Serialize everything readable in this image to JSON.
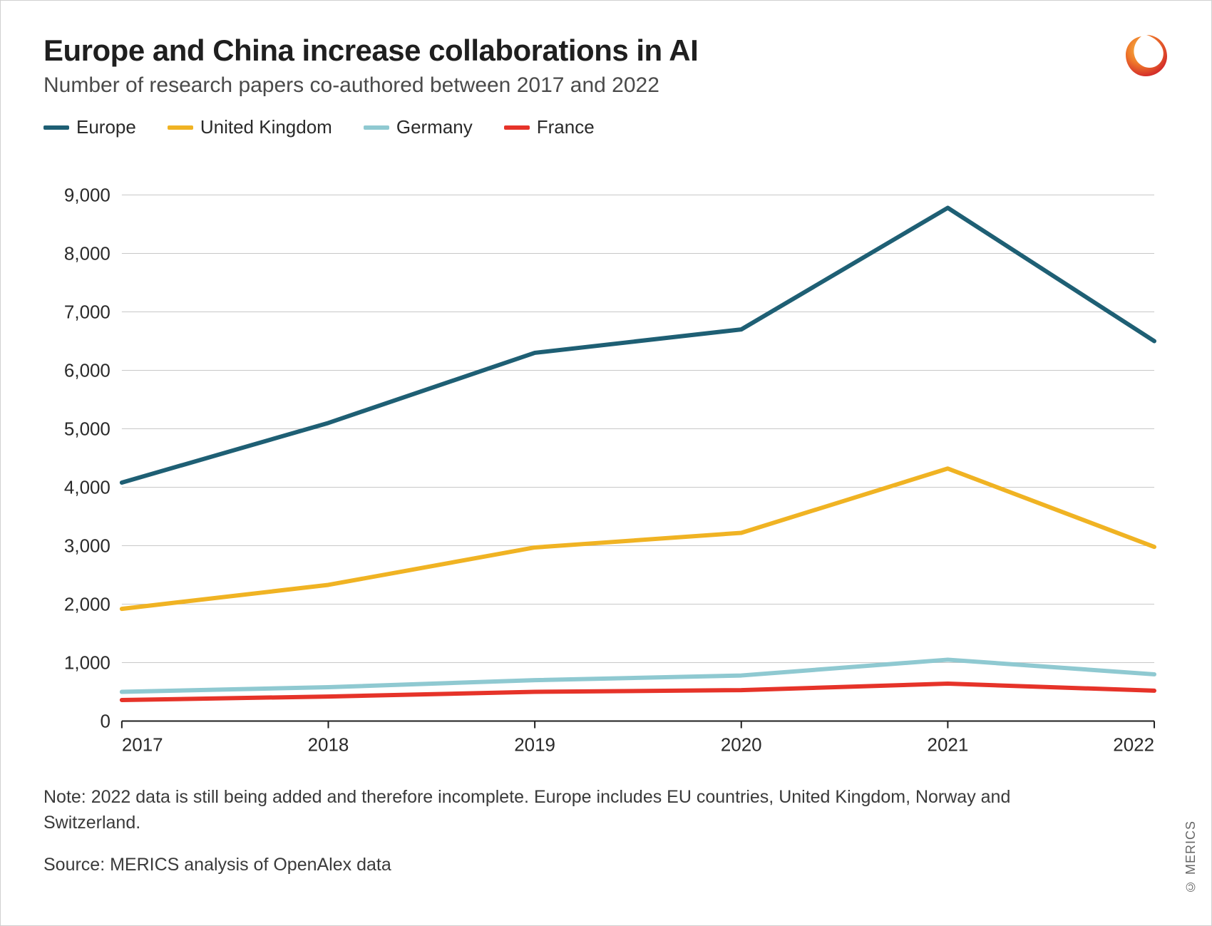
{
  "title": "Europe and China increase collaborations in AI",
  "subtitle": "Number of research papers co-authored between 2017 and 2022",
  "note": "Note: 2022 data is still being added and therefore incomplete. Europe includes EU countries, United Kingdom, Norway and Switzerland.",
  "source": "Source: MERICS analysis of OpenAlex data",
  "side_copyright": "© MERICS",
  "chart": {
    "type": "line",
    "background_color": "#ffffff",
    "grid_color": "#c8c8c8",
    "axis_color": "#1f1f1f",
    "line_width": 6,
    "x": {
      "categories": [
        "2017",
        "2018",
        "2019",
        "2020",
        "2021",
        "2022"
      ],
      "label_fontsize": 26
    },
    "y": {
      "min": 0,
      "max": 9500,
      "ticks": [
        0,
        1000,
        2000,
        3000,
        4000,
        5000,
        6000,
        7000,
        8000,
        9000
      ],
      "tick_labels": [
        "0",
        "1,000",
        "2,000",
        "3,000",
        "4,000",
        "5,000",
        "6,000",
        "7,000",
        "8,000",
        "9,000"
      ],
      "label_fontsize": 26
    },
    "series": [
      {
        "name": "Europe",
        "color": "#1e5f74",
        "values": [
          4080,
          5100,
          6300,
          6700,
          8780,
          6500
        ]
      },
      {
        "name": "United Kingdom",
        "color": "#f0b323",
        "values": [
          1920,
          2330,
          2970,
          3220,
          4320,
          2980
        ]
      },
      {
        "name": "Germany",
        "color": "#8fc9d1",
        "values": [
          500,
          580,
          700,
          780,
          1050,
          800
        ]
      },
      {
        "name": "France",
        "color": "#e63329",
        "values": [
          360,
          420,
          500,
          530,
          640,
          520
        ]
      }
    ]
  },
  "logo": {
    "colors": {
      "outer": "#e63329",
      "mid": "#f0b323",
      "inner": "#ffffff"
    }
  }
}
